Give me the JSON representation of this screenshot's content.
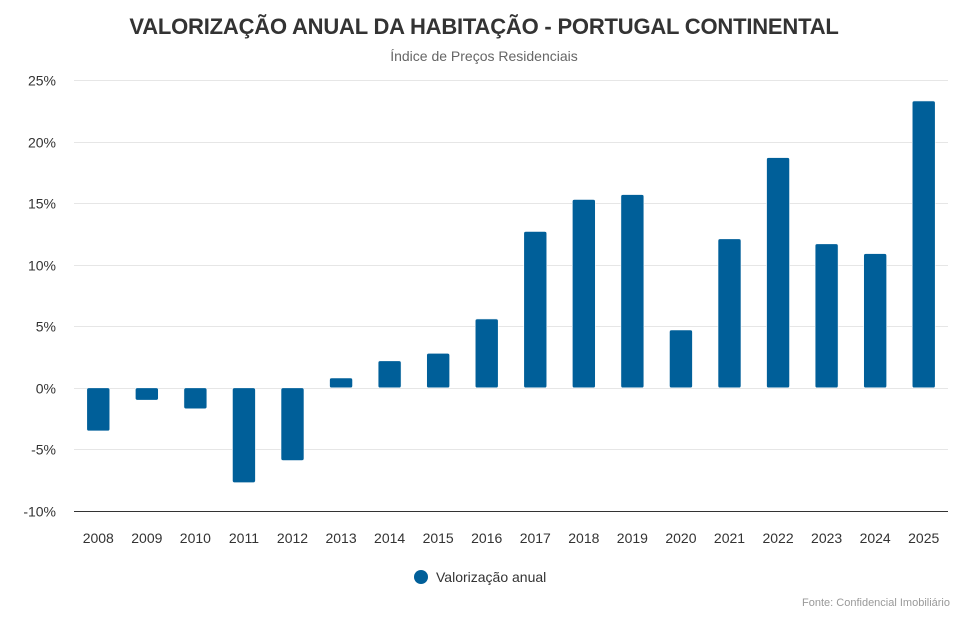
{
  "chart_data": {
    "type": "bar",
    "title": "VALORIZAÇÃO ANUAL DA HABITAÇÃO - PORTUGAL CONTINENTAL",
    "subtitle": "Índice de Preços Residenciais",
    "xlabel": "",
    "ylabel": "",
    "categories": [
      "2008",
      "2009",
      "2010",
      "2011",
      "2012",
      "2013",
      "2014",
      "2015",
      "2016",
      "2017",
      "2018",
      "2019",
      "2020",
      "2021",
      "2022",
      "2023",
      "2024",
      "2025"
    ],
    "series": [
      {
        "name": "Valorização anual",
        "color": "#005f99",
        "values": [
          -3.5,
          -1.0,
          -1.7,
          -7.7,
          -5.9,
          0.8,
          2.2,
          2.8,
          5.6,
          12.7,
          15.3,
          15.7,
          4.7,
          12.1,
          18.7,
          11.7,
          10.9,
          23.3
        ]
      }
    ],
    "ylim": [
      -10,
      25
    ],
    "yticks": [
      -10,
      -5,
      0,
      5,
      10,
      15,
      20,
      25
    ],
    "ytick_labels": [
      "-10%",
      "-5%",
      "0%",
      "5%",
      "10%",
      "15%",
      "20%",
      "25%"
    ],
    "grid": true,
    "legend": "bottom-center",
    "credits": "Fonte: Confidencial Imobiliário"
  }
}
